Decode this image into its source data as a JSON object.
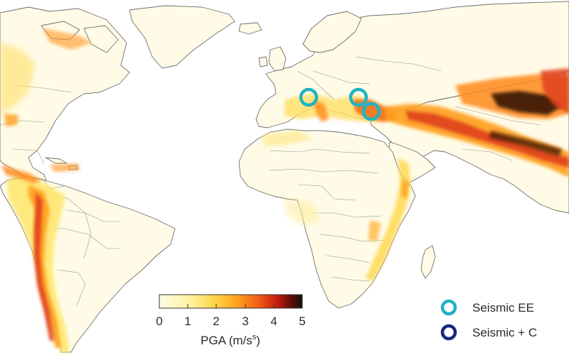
{
  "map": {
    "colorbar": {
      "ticks": [
        "0",
        "1",
        "2",
        "3",
        "4",
        "5"
      ],
      "title": "PGA (m/s",
      "title_superscript": "s",
      "title_close": ")",
      "range": [
        0,
        5
      ],
      "colors": [
        "#fffbe6",
        "#fff3a6",
        "#ffd64a",
        "#ff9f1c",
        "#f05a14",
        "#c81e0f",
        "#5a0b08",
        "#111111"
      ]
    },
    "legend": [
      {
        "label": "Seismic EE",
        "ring_color": "#1fb3c4"
      },
      {
        "label": "Seismic + C",
        "ring_color": "#16287a"
      }
    ],
    "colors": {
      "land": "#fffbe6",
      "border": "#6e6e6e",
      "hazard_low": "#ffe66b",
      "hazard_mid": "#ffa01f",
      "hazard_high": "#e0401a",
      "hazard_extreme": "#2a0805"
    }
  }
}
